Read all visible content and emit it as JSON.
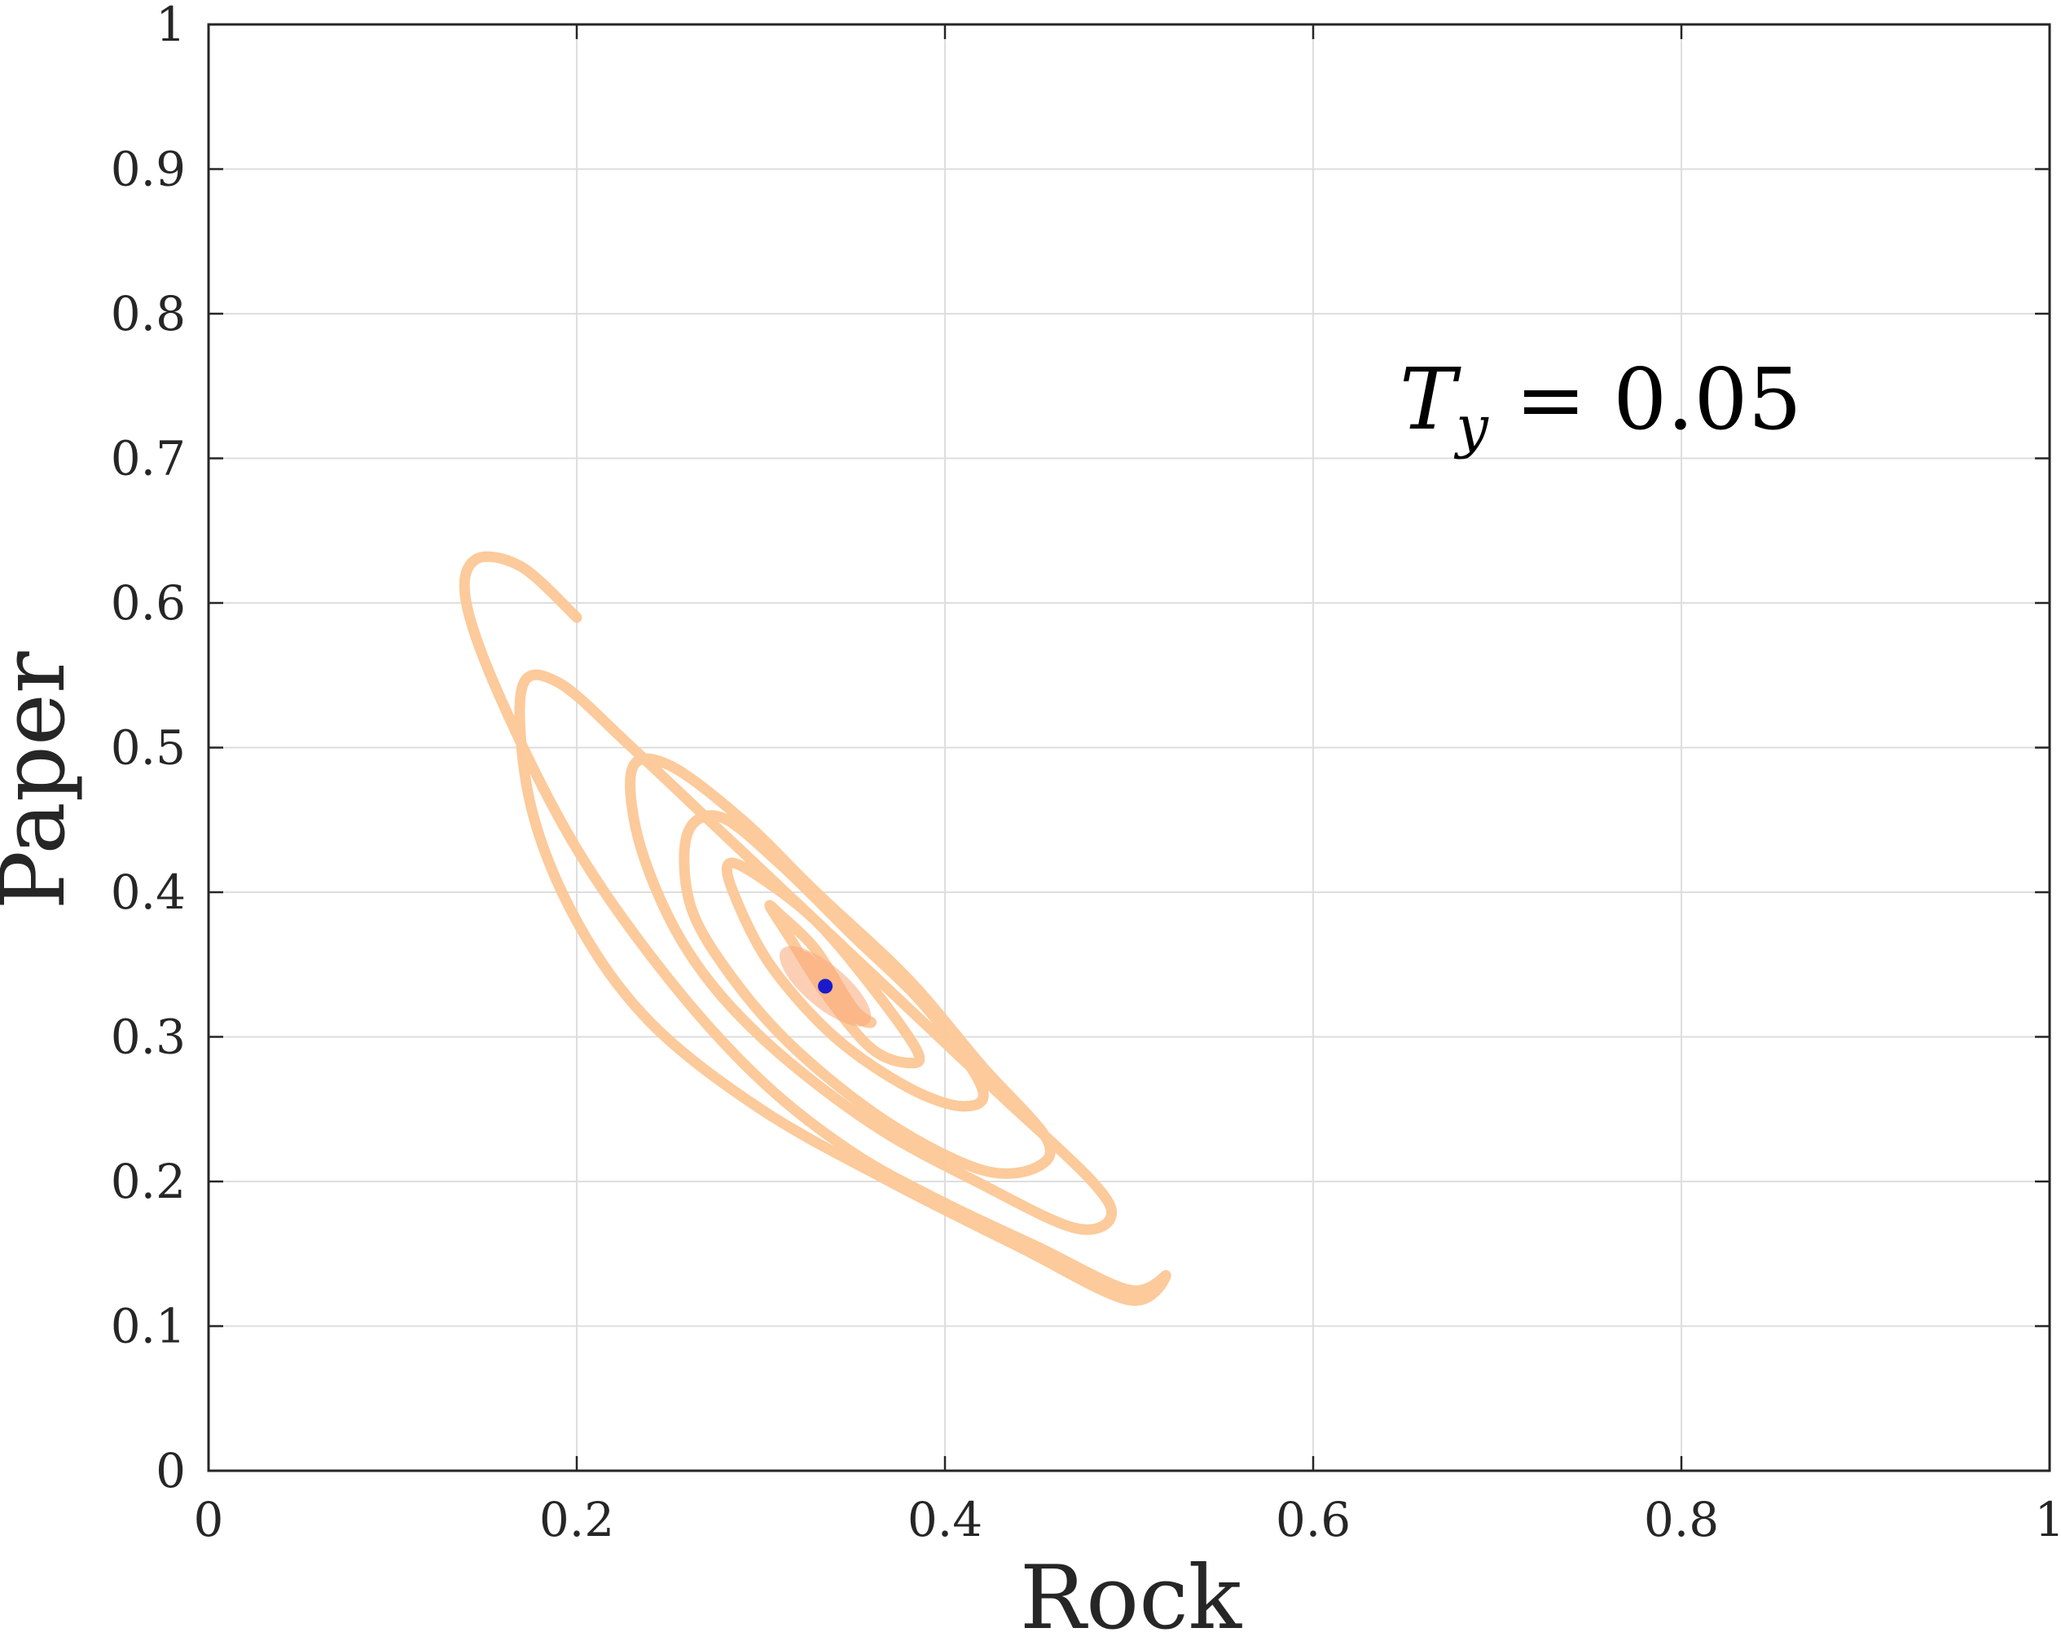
{
  "chart_data": {
    "type": "line",
    "title": "",
    "xlabel": "Rock",
    "ylabel": "Paper",
    "xlim": [
      0,
      1
    ],
    "ylim": [
      0,
      1
    ],
    "grid": true,
    "xticks": [
      "0",
      "0.2",
      "0.4",
      "0.6",
      "0.8",
      "1"
    ],
    "yticks": [
      "0",
      "0.1",
      "0.2",
      "0.3",
      "0.4",
      "0.5",
      "0.6",
      "0.7",
      "0.8",
      "0.9",
      "1"
    ],
    "annotation": {
      "main": "T",
      "subscript": "y",
      "value": " = 0.05"
    },
    "colors": {
      "trajectory": "#fcc796",
      "trajectory_core": "#f9a878",
      "equilibrium": "#1a1acc",
      "grid": "#dedede",
      "axis": "#262626"
    },
    "series": [
      {
        "x": [
          0.2,
          0.17,
          0.145,
          0.14,
          0.16,
          0.2,
          0.25,
          0.3,
          0.35,
          0.4,
          0.45,
          0.5,
          0.52,
          0.5,
          0.44,
          0.37,
          0.3,
          0.24,
          0.2,
          0.175,
          0.17,
          0.19,
          0.23,
          0.28,
          0.33,
          0.38,
          0.43,
          0.48,
          0.49,
          0.47,
          0.42,
          0.36,
          0.3,
          0.26,
          0.235,
          0.23,
          0.25,
          0.29,
          0.33,
          0.38,
          0.42,
          0.455,
          0.45,
          0.42,
          0.37,
          0.32,
          0.285,
          0.262,
          0.26,
          0.278,
          0.31,
          0.35,
          0.39,
          0.42,
          0.41,
          0.38,
          0.34,
          0.305,
          0.285,
          0.283,
          0.3,
          0.33,
          0.36,
          0.385,
          0.38,
          0.36,
          0.335,
          0.315,
          0.305,
          0.31,
          0.33,
          0.35,
          0.36,
          0.35,
          0.335,
          0.325,
          0.325,
          0.335
        ],
        "y": [
          0.59,
          0.625,
          0.63,
          0.6,
          0.53,
          0.43,
          0.34,
          0.27,
          0.22,
          0.185,
          0.155,
          0.125,
          0.135,
          0.118,
          0.155,
          0.2,
          0.25,
          0.31,
          0.38,
          0.46,
          0.54,
          0.545,
          0.5,
          0.44,
          0.38,
          0.32,
          0.26,
          0.2,
          0.175,
          0.168,
          0.198,
          0.24,
          0.3,
          0.36,
          0.43,
          0.485,
          0.488,
          0.45,
          0.4,
          0.34,
          0.28,
          0.23,
          0.21,
          0.208,
          0.24,
          0.29,
          0.34,
          0.39,
          0.44,
          0.452,
          0.42,
          0.37,
          0.32,
          0.265,
          0.252,
          0.265,
          0.3,
          0.35,
          0.4,
          0.42,
          0.41,
          0.38,
          0.335,
          0.29,
          0.282,
          0.292,
          0.33,
          0.37,
          0.39,
          0.385,
          0.36,
          0.32,
          0.31,
          0.315,
          0.34,
          0.355,
          0.35,
          0.337
        ]
      }
    ],
    "points": [
      {
        "x": 0.335,
        "y": 0.335
      }
    ]
  }
}
